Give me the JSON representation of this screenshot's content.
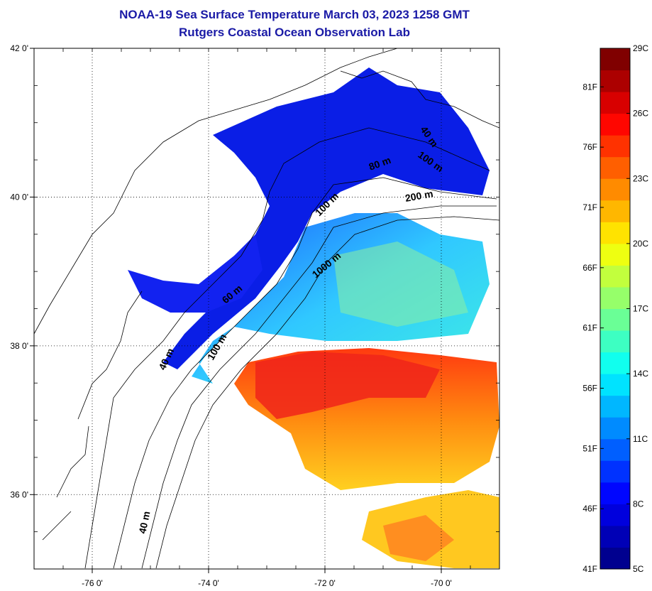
{
  "title": "NOAA-19 Sea Surface Temperature March 03, 2023 1258 GMT",
  "subtitle": "Rutgers Coastal Ocean Observation Lab",
  "map": {
    "lat_labels": [
      "42 0'",
      "40 0'",
      "38 0'",
      "36 0'"
    ],
    "lon_labels": [
      "-76 0'",
      "-74 0'",
      "-72 0'",
      "-70 0'"
    ],
    "lat_values": [
      42,
      40,
      38,
      36
    ],
    "lon_values": [
      -76,
      -74,
      -72,
      -70
    ],
    "lon_range": [
      -77.0,
      -69.0
    ],
    "lat_range": [
      35.0,
      42.0
    ],
    "grid": "dotted",
    "contour_labels": [
      "40 m",
      "40 m",
      "60 m",
      "100 m",
      "1000 m",
      "100 m",
      "200 m",
      "80 m",
      "100 m",
      "40 m",
      "40 m"
    ]
  },
  "colorbar": {
    "celsius_labels": [
      "29C",
      "26C",
      "23C",
      "20C",
      "17C",
      "14C",
      "11C",
      "8C",
      "5C"
    ],
    "fahrenheit_labels": [
      "81F",
      "76F",
      "71F",
      "66F",
      "61F",
      "56F",
      "51F",
      "46F",
      "41F"
    ],
    "celsius_values": [
      29,
      26,
      23,
      20,
      17,
      14,
      11,
      8,
      5
    ],
    "fahrenheit_values": [
      81,
      76,
      71,
      66,
      61,
      56,
      51,
      46,
      41
    ],
    "range_c": [
      5,
      29
    ],
    "colormap": [
      "#00008f",
      "#0000ff",
      "#0080ff",
      "#00ffff",
      "#80ff80",
      "#ffff00",
      "#ff8000",
      "#ff0000",
      "#800000"
    ]
  }
}
